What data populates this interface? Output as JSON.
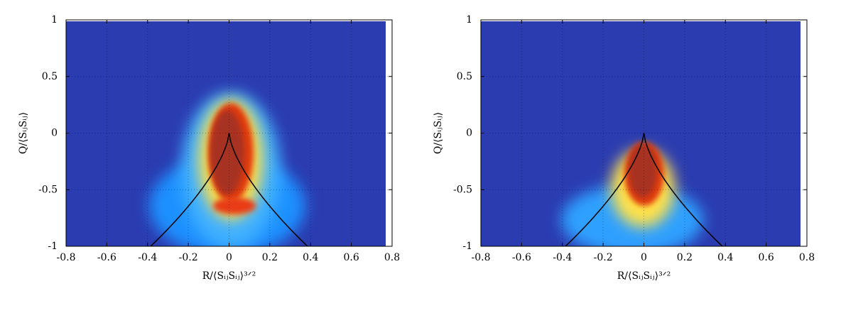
{
  "chart_data": [
    {
      "type": "heatmap",
      "xlabel": "R/⟨SᵢⱼSᵢⱼ⟩³ᐟ²",
      "ylabel": "Q/⟨SᵢⱼSᵢⱼ⟩",
      "xlim": [
        -0.8,
        0.8
      ],
      "ylim": [
        -1,
        1
      ],
      "xticks": [
        -0.8,
        -0.6,
        -0.4,
        -0.2,
        0,
        0.2,
        0.4,
        0.6,
        0.8
      ],
      "yticks": [
        -1,
        -0.5,
        0,
        0.5,
        1
      ],
      "grid": true
    },
    {
      "type": "heatmap",
      "xlabel": "R/⟨SᵢⱼSᵢⱼ⟩³ᐟ²",
      "ylabel": "Q/⟨SᵢⱼSᵢⱼ⟩",
      "xlim": [
        -0.8,
        0.8
      ],
      "ylim": [
        -1,
        1
      ],
      "xticks": [
        -0.8,
        -0.6,
        -0.4,
        -0.2,
        0,
        0.2,
        0.4,
        0.6,
        0.8
      ],
      "yticks": [
        -1,
        -0.5,
        0,
        0.5,
        1
      ],
      "grid": true
    }
  ]
}
